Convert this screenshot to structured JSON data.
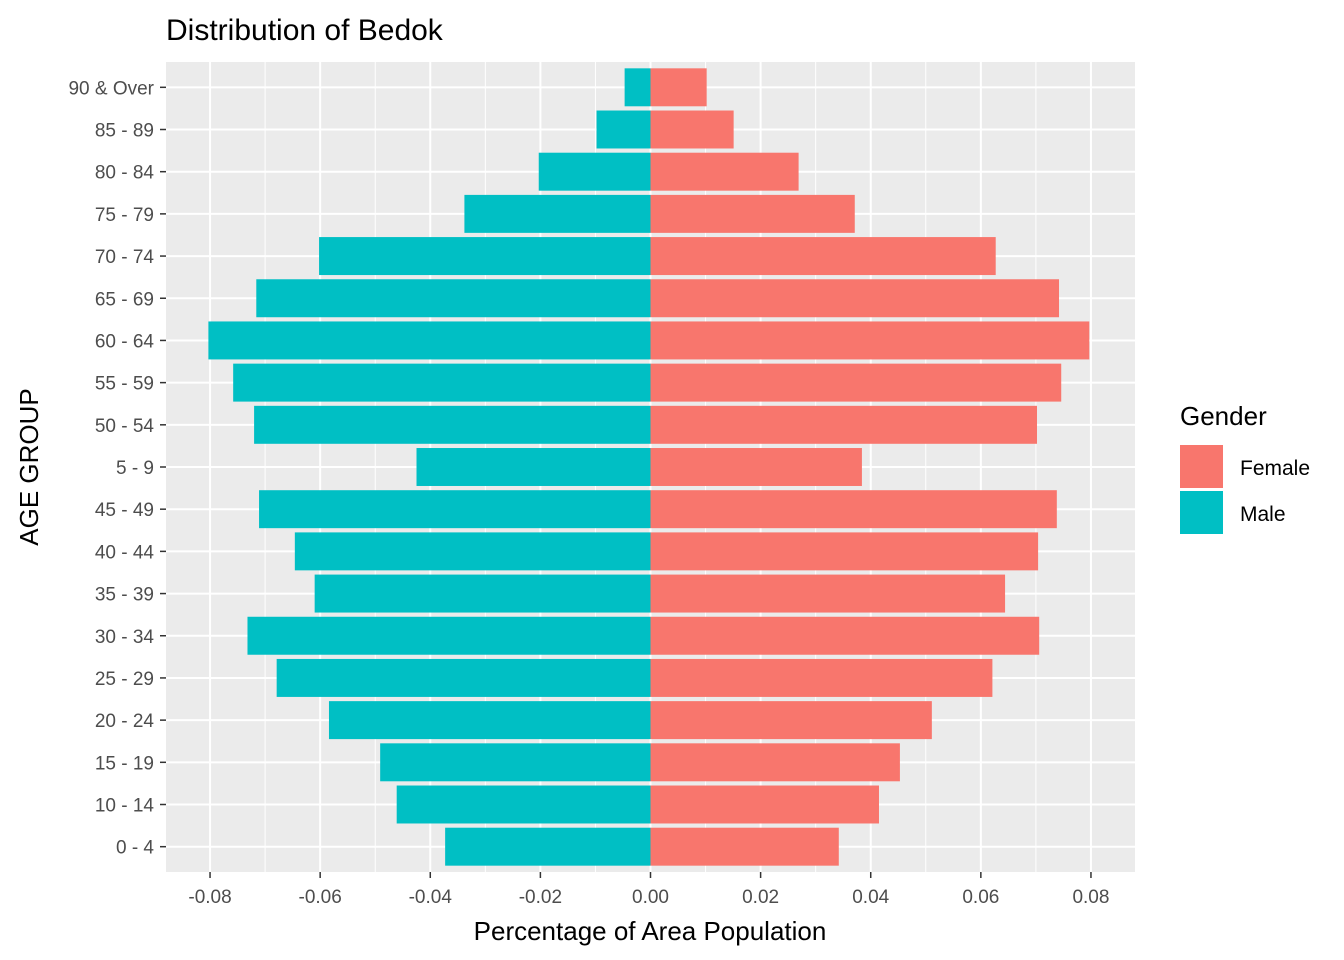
{
  "chart_data": {
    "type": "bar",
    "orientation": "horizontal",
    "title": "Distribution of Bedok",
    "xlabel": "Percentage of Area Population",
    "ylabel": "AGE GROUP",
    "xlim": [
      -0.088,
      0.088
    ],
    "xticks": [
      -0.08,
      -0.06,
      -0.04,
      -0.02,
      0.0,
      0.02,
      0.04,
      0.06,
      0.08
    ],
    "xtick_labels": [
      "-0.08",
      "-0.06",
      "-0.04",
      "-0.02",
      "0.00",
      "0.02",
      "0.04",
      "0.06",
      "0.08"
    ],
    "grid": true,
    "legend_position": "right",
    "legend_title": "Gender",
    "categories": [
      "0 - 4",
      "10 - 14",
      "15 - 19",
      "20 - 24",
      "25 - 29",
      "30 - 34",
      "35 - 39",
      "40 - 44",
      "45 - 49",
      "5 - 9",
      "50 - 54",
      "55 - 59",
      "60 - 64",
      "65 - 69",
      "70 - 74",
      "75 - 79",
      "80 - 84",
      "85 - 89",
      "90 & Over"
    ],
    "series": [
      {
        "name": "Female",
        "color": "#F8766D",
        "values": [
          0.0342,
          0.0415,
          0.0453,
          0.0511,
          0.0621,
          0.0706,
          0.0644,
          0.0704,
          0.0738,
          0.0384,
          0.0702,
          0.0746,
          0.0797,
          0.0742,
          0.0627,
          0.0371,
          0.0269,
          0.0151,
          0.0102
        ]
      },
      {
        "name": "Male",
        "color": "#00BFC4",
        "values": [
          -0.0373,
          -0.0461,
          -0.0491,
          -0.0584,
          -0.0679,
          -0.0732,
          -0.061,
          -0.0646,
          -0.0711,
          -0.0425,
          -0.072,
          -0.0758,
          -0.0803,
          -0.0716,
          -0.0602,
          -0.0338,
          -0.0203,
          -0.0098,
          -0.0047
        ]
      }
    ]
  }
}
